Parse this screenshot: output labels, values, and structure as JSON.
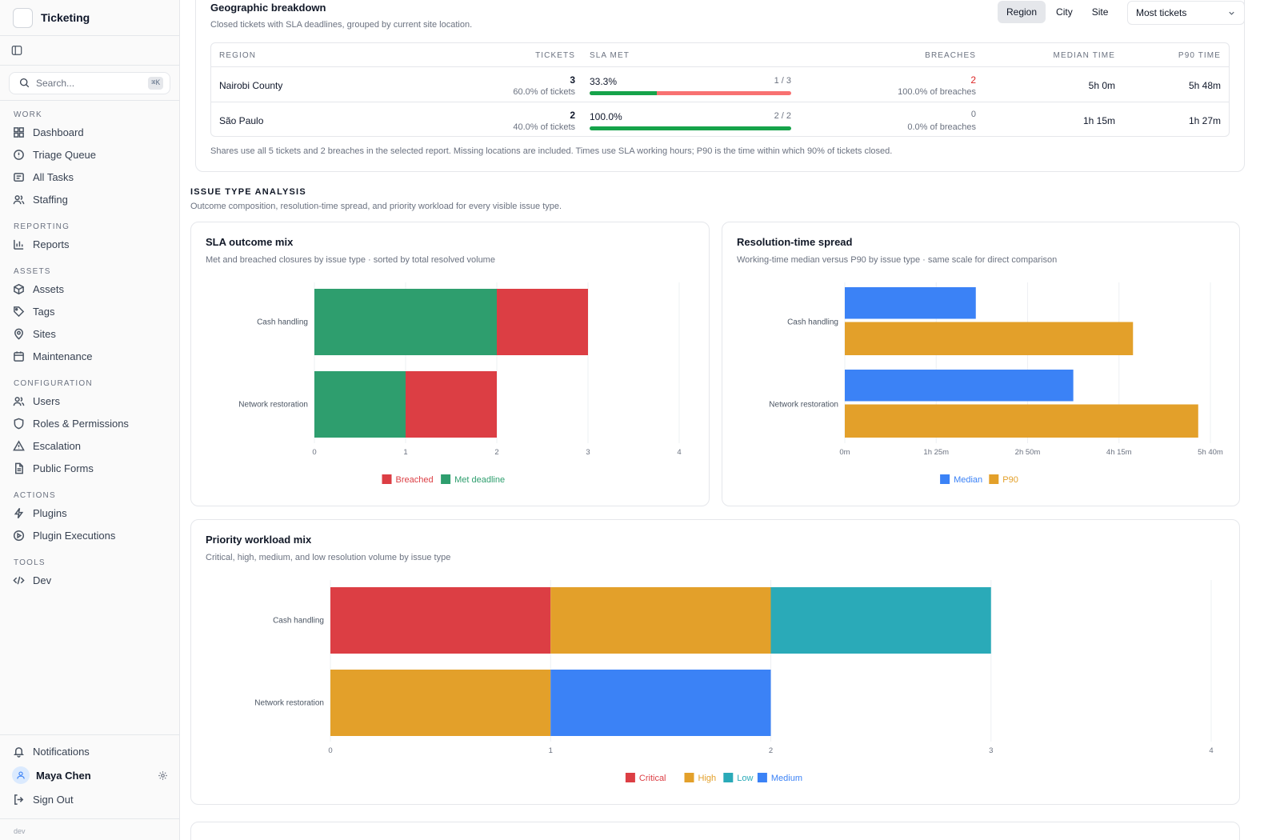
{
  "app": {
    "name": "Ticketing",
    "env": "dev"
  },
  "search": {
    "placeholder": "Search...",
    "shortcut": "⌘K"
  },
  "sidebar": {
    "sections": [
      {
        "title": "WORK",
        "items": [
          {
            "label": "Dashboard",
            "icon": "dashboard-icon"
          },
          {
            "label": "Triage Queue",
            "icon": "alert-circle-icon"
          },
          {
            "label": "All Tasks",
            "icon": "tasks-icon"
          },
          {
            "label": "Staffing",
            "icon": "users-icon"
          }
        ]
      },
      {
        "title": "REPORTING",
        "items": [
          {
            "label": "Reports",
            "icon": "bar-chart-icon"
          }
        ]
      },
      {
        "title": "ASSETS",
        "items": [
          {
            "label": "Assets",
            "icon": "box-icon"
          },
          {
            "label": "Tags",
            "icon": "tag-icon"
          },
          {
            "label": "Sites",
            "icon": "map-pin-icon"
          },
          {
            "label": "Maintenance",
            "icon": "calendar-icon"
          }
        ]
      },
      {
        "title": "CONFIGURATION",
        "items": [
          {
            "label": "Users",
            "icon": "users-icon"
          },
          {
            "label": "Roles & Permissions",
            "icon": "shield-icon"
          },
          {
            "label": "Escalation",
            "icon": "warning-icon"
          },
          {
            "label": "Public Forms",
            "icon": "document-icon"
          }
        ]
      },
      {
        "title": "ACTIONS",
        "items": [
          {
            "label": "Plugins",
            "icon": "bolt-icon"
          },
          {
            "label": "Plugin Executions",
            "icon": "play-circle-icon"
          }
        ]
      },
      {
        "title": "TOOLS",
        "items": [
          {
            "label": "Dev",
            "icon": "code-icon"
          }
        ]
      }
    ],
    "footer": {
      "notifications": "Notifications",
      "user": "Maya Chen",
      "sign_out": "Sign Out"
    }
  },
  "geo": {
    "title": "Geographic breakdown",
    "subtitle": "Closed tickets with SLA deadlines, grouped by current site location.",
    "tabs": [
      "Region",
      "City",
      "Site"
    ],
    "active_tab": "Region",
    "sort": "Most tickets",
    "columns": [
      "REGION",
      "TICKETS",
      "SLA MET",
      "BREACHES",
      "MEDIAN TIME",
      "P90 TIME"
    ],
    "rows": [
      {
        "region": "Nairobi County",
        "tickets": "3",
        "tickets_share": "60.0% of tickets",
        "sla_pct": "33.3%",
        "sla_ratio": "1 / 3",
        "sla_fraction": 0.333,
        "breaches": "2",
        "breach_share": "100.0% of breaches",
        "median": "5h 0m",
        "p90": "5h 48m"
      },
      {
        "region": "São Paulo",
        "tickets": "2",
        "tickets_share": "40.0% of tickets",
        "sla_pct": "100.0%",
        "sla_ratio": "2 / 2",
        "sla_fraction": 1.0,
        "breaches": "0",
        "breach_share": "0.0% of breaches",
        "median": "1h 15m",
        "p90": "1h 27m"
      }
    ],
    "note": "Shares use all 5 tickets and 2 breaches in the selected report. Missing locations are included. Times use SLA working hours; P90 is the time within which 90% of tickets closed."
  },
  "issue": {
    "title": "ISSUE TYPE ANALYSIS",
    "subtitle": "Outcome composition, resolution-time spread, and priority workload for every visible issue type."
  },
  "charts": {
    "sla": {
      "title": "SLA outcome mix",
      "subtitle": "Met and breached closures by issue type · sorted by total resolved volume"
    },
    "res": {
      "title": "Resolution-time spread",
      "subtitle": "Working-time median versus P90 by issue type · same scale for direct comparison"
    },
    "pri": {
      "title": "Priority workload mix",
      "subtitle": "Critical, high, medium, and low resolution volume by issue type"
    }
  },
  "chart_data": [
    {
      "type": "bar",
      "orientation": "horizontal",
      "stacked": true,
      "title": "SLA outcome mix",
      "categories": [
        "Cash handling",
        "Network restoration"
      ],
      "series": [
        {
          "name": "Met deadline",
          "values": [
            2,
            1
          ],
          "color": "#2e9e6e"
        },
        {
          "name": "Breached",
          "values": [
            1,
            1
          ],
          "color": "#dc3e44"
        }
      ],
      "xlim": [
        0,
        4
      ],
      "ticks": [
        "0",
        "1",
        "2",
        "3",
        "4"
      ],
      "legend": [
        {
          "name": "Breached",
          "color": "#dc3e44"
        },
        {
          "name": "Met deadline",
          "color": "#2e9e6e"
        }
      ],
      "legend_position": "bottom",
      "grid": true
    },
    {
      "type": "bar",
      "orientation": "horizontal",
      "stacked": false,
      "title": "Resolution-time spread",
      "categories": [
        "Cash handling",
        "Network restoration"
      ],
      "series": [
        {
          "name": "Median",
          "values": [
            2.15,
            3.75
          ],
          "color": "#3b82f6",
          "unit": "hours"
        },
        {
          "name": "P90",
          "values": [
            4.73,
            5.8
          ],
          "color": "#e3a02a",
          "unit": "hours"
        }
      ],
      "xlim": [
        0,
        6.0
      ],
      "ticks": [
        "0m",
        "1h 25m",
        "2h 50m",
        "4h 15m",
        "5h 40m"
      ],
      "legend": [
        {
          "name": "Median",
          "color": "#3b82f6"
        },
        {
          "name": "P90",
          "color": "#e3a02a"
        }
      ],
      "legend_position": "bottom",
      "grid": true
    },
    {
      "type": "bar",
      "orientation": "horizontal",
      "stacked": true,
      "title": "Priority workload mix",
      "categories": [
        "Cash handling",
        "Network restoration"
      ],
      "series": [
        {
          "name": "Critical",
          "values": [
            1,
            0
          ],
          "color": "#dc3e44"
        },
        {
          "name": "High",
          "values": [
            1,
            1
          ],
          "color": "#e3a02a"
        },
        {
          "name": "Low",
          "values": [
            1,
            0
          ],
          "color": "#2aaab8"
        },
        {
          "name": "Medium",
          "values": [
            0,
            1
          ],
          "color": "#3b82f6"
        }
      ],
      "xlim": [
        0,
        4
      ],
      "ticks": [
        "0",
        "1",
        "2",
        "3",
        "4"
      ],
      "legend": [
        {
          "name": "Critical",
          "color": "#dc3e44"
        },
        {
          "name": "High",
          "color": "#e3a02a"
        },
        {
          "name": "Low",
          "color": "#2aaab8"
        },
        {
          "name": "Medium",
          "color": "#3b82f6"
        }
      ],
      "legend_position": "bottom",
      "grid": true
    }
  ]
}
